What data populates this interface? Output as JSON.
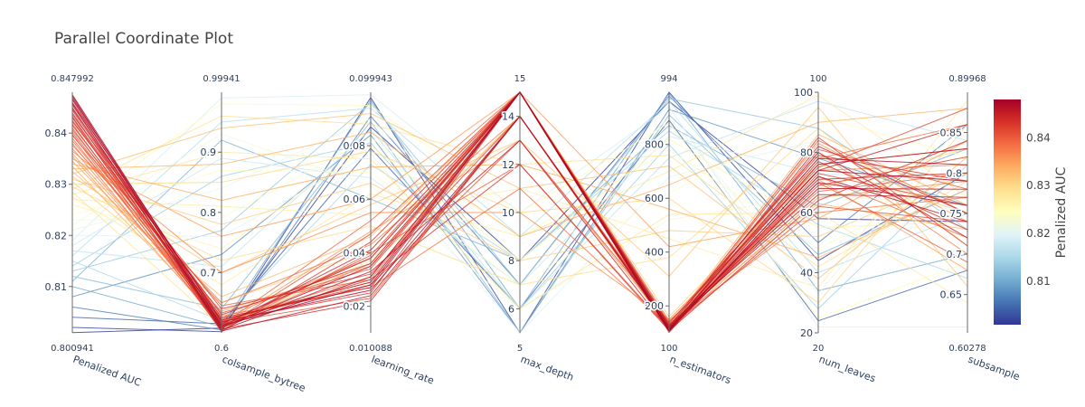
{
  "chart_data": {
    "type": "parallel_coordinates",
    "title": "Parallel Coordinate Plot",
    "color_by": "Penalized AUC",
    "colorscale": [
      "#313695",
      "#4575b4",
      "#74add1",
      "#abd9e9",
      "#e0f3f8",
      "#ffffbf",
      "#fee090",
      "#fdae61",
      "#f46d43",
      "#d73027",
      "#a50026"
    ],
    "colorbar": {
      "title": "Penalized AUC",
      "range": [
        0.800941,
        0.847992
      ],
      "ticks": [
        0.81,
        0.82,
        0.83,
        0.84
      ],
      "tick_labels": [
        "0.81",
        "0.82",
        "0.83",
        "0.84"
      ]
    },
    "axes": [
      {
        "name": "Penalized AUC",
        "min": 0.800941,
        "max": 0.847992,
        "min_label": "0.800941",
        "max_label": "0.847992",
        "ticks": [
          0.81,
          0.82,
          0.83,
          0.84
        ],
        "tick_labels": [
          "0.81",
          "0.82",
          "0.83",
          "0.84"
        ]
      },
      {
        "name": "colsample_bytree",
        "min": 0.6,
        "max": 0.99941,
        "min_label": "0.6",
        "max_label": "0.99941",
        "ticks": [
          0.7,
          0.8,
          0.9
        ],
        "tick_labels": [
          "0.7",
          "0.8",
          "0.9"
        ]
      },
      {
        "name": "learning_rate",
        "min": 0.010088,
        "max": 0.099943,
        "min_label": "0.010088",
        "max_label": "0.099943",
        "ticks": [
          0.02,
          0.04,
          0.06,
          0.08
        ],
        "tick_labels": [
          "0.02",
          "0.04",
          "0.06",
          "0.08"
        ]
      },
      {
        "name": "max_depth",
        "min": 5,
        "max": 15,
        "min_label": "5",
        "max_label": "15",
        "ticks": [
          6,
          8,
          10,
          12,
          14
        ],
        "tick_labels": [
          "6",
          "8",
          "10",
          "12",
          "14"
        ]
      },
      {
        "name": "n_estimators",
        "min": 100,
        "max": 994,
        "min_label": "100",
        "max_label": "994",
        "ticks": [
          200,
          400,
          600,
          800
        ],
        "tick_labels": [
          "200",
          "400",
          "600",
          "800"
        ]
      },
      {
        "name": "num_leaves",
        "min": 20,
        "max": 100,
        "min_label": "20",
        "max_label": "100",
        "ticks": [
          20,
          40,
          60,
          80,
          100
        ],
        "tick_labels": [
          "20",
          "40",
          "60",
          "80",
          "100"
        ]
      },
      {
        "name": "subsample",
        "min": 0.60278,
        "max": 0.89968,
        "min_label": "0.60278",
        "max_label": "0.89968",
        "ticks": [
          0.65,
          0.7,
          0.75,
          0.8,
          0.85
        ],
        "tick_labels": [
          "0.65",
          "0.7",
          "0.75",
          "0.8",
          "0.85"
        ]
      }
    ],
    "trials": [
      [
        0.8475,
        0.612,
        0.028,
        15,
        108,
        74,
        0.79
      ],
      [
        0.8472,
        0.605,
        0.031,
        15,
        112,
        70,
        0.76
      ],
      [
        0.8468,
        0.618,
        0.026,
        14,
        115,
        78,
        0.81
      ],
      [
        0.8465,
        0.609,
        0.035,
        15,
        120,
        72,
        0.74
      ],
      [
        0.846,
        0.621,
        0.029,
        15,
        105,
        76,
        0.83
      ],
      [
        0.8458,
        0.603,
        0.024,
        14,
        118,
        68,
        0.78
      ],
      [
        0.8455,
        0.615,
        0.038,
        15,
        125,
        80,
        0.72
      ],
      [
        0.845,
        0.608,
        0.033,
        13,
        110,
        74,
        0.86
      ],
      [
        0.8448,
        0.625,
        0.027,
        15,
        130,
        66,
        0.77
      ],
      [
        0.8445,
        0.611,
        0.041,
        15,
        104,
        82,
        0.75
      ],
      [
        0.844,
        0.606,
        0.022,
        14,
        122,
        71,
        0.8
      ],
      [
        0.8436,
        0.63,
        0.036,
        15,
        115,
        77,
        0.73
      ],
      [
        0.8432,
        0.614,
        0.03,
        12,
        108,
        64,
        0.84
      ],
      [
        0.843,
        0.602,
        0.044,
        15,
        135,
        79,
        0.79
      ],
      [
        0.8425,
        0.619,
        0.025,
        15,
        112,
        85,
        0.71
      ],
      [
        0.8422,
        0.64,
        0.032,
        14,
        126,
        69,
        0.82
      ],
      [
        0.8418,
        0.61,
        0.039,
        15,
        102,
        73,
        0.76
      ],
      [
        0.8415,
        0.622,
        0.028,
        13,
        140,
        75,
        0.88
      ],
      [
        0.841,
        0.607,
        0.047,
        15,
        118,
        62,
        0.74
      ],
      [
        0.8406,
        0.633,
        0.034,
        15,
        109,
        81,
        0.78
      ],
      [
        0.8402,
        0.616,
        0.023,
        14,
        128,
        70,
        0.69
      ],
      [
        0.8398,
        0.604,
        0.04,
        12,
        114,
        76,
        0.83
      ],
      [
        0.8395,
        0.645,
        0.03,
        15,
        106,
        84,
        0.75
      ],
      [
        0.839,
        0.613,
        0.052,
        15,
        145,
        67,
        0.8
      ],
      [
        0.8385,
        0.628,
        0.027,
        11,
        121,
        72,
        0.72
      ],
      [
        0.838,
        0.609,
        0.036,
        15,
        111,
        78,
        0.86
      ],
      [
        0.8376,
        0.65,
        0.043,
        14,
        133,
        60,
        0.77
      ],
      [
        0.837,
        0.618,
        0.031,
        15,
        103,
        80,
        0.7
      ],
      [
        0.8365,
        0.7,
        0.055,
        10,
        150,
        74,
        0.81
      ],
      [
        0.836,
        0.624,
        0.038,
        15,
        117,
        65,
        0.79
      ],
      [
        0.8355,
        0.612,
        0.048,
        13,
        127,
        83,
        0.74
      ],
      [
        0.835,
        0.76,
        0.06,
        15,
        420,
        58,
        0.84
      ],
      [
        0.8345,
        0.636,
        0.035,
        14,
        108,
        71,
        0.68
      ],
      [
        0.834,
        0.82,
        0.072,
        12,
        560,
        45,
        0.78
      ],
      [
        0.8335,
        0.62,
        0.029,
        15,
        124,
        86,
        0.76
      ],
      [
        0.833,
        0.88,
        0.085,
        9,
        650,
        90,
        0.88
      ],
      [
        0.8325,
        0.66,
        0.046,
        15,
        138,
        63,
        0.73
      ],
      [
        0.832,
        0.94,
        0.092,
        11,
        720,
        38,
        0.82
      ],
      [
        0.8315,
        0.7,
        0.058,
        13,
        310,
        95,
        0.66
      ],
      [
        0.831,
        0.78,
        0.066,
        8,
        480,
        52,
        0.8
      ],
      [
        0.8305,
        0.65,
        0.041,
        15,
        160,
        76,
        0.75
      ],
      [
        0.83,
        0.85,
        0.078,
        10,
        600,
        30,
        0.86
      ],
      [
        0.8295,
        0.72,
        0.05,
        7,
        380,
        88,
        0.71
      ],
      [
        0.829,
        0.96,
        0.088,
        12,
        760,
        42,
        0.79
      ],
      [
        0.8285,
        0.61,
        0.037,
        14,
        125,
        68,
        0.83
      ],
      [
        0.828,
        0.9,
        0.075,
        6,
        540,
        60,
        0.64
      ],
      [
        0.8275,
        0.68,
        0.062,
        9,
        700,
        99,
        0.77
      ],
      [
        0.827,
        0.81,
        0.054,
        11,
        450,
        35,
        0.89
      ],
      [
        0.826,
        0.74,
        0.08,
        8,
        820,
        55,
        0.74
      ],
      [
        0.825,
        0.98,
        0.095,
        10,
        880,
        25,
        0.69
      ],
      [
        0.824,
        0.87,
        0.07,
        7,
        620,
        92,
        0.82
      ],
      [
        0.823,
        0.79,
        0.083,
        9,
        780,
        48,
        0.8
      ],
      [
        0.822,
        0.93,
        0.065,
        6,
        520,
        66,
        0.76
      ],
      [
        0.821,
        0.84,
        0.09,
        8,
        900,
        33,
        0.87
      ],
      [
        0.82,
        0.76,
        0.077,
        5,
        680,
        84,
        0.72
      ],
      [
        0.819,
        0.99,
        0.099,
        10,
        940,
        22,
        0.61
      ],
      [
        0.818,
        0.89,
        0.068,
        7,
        830,
        73,
        0.79
      ],
      [
        0.817,
        0.71,
        0.086,
        6,
        750,
        97,
        0.84
      ],
      [
        0.816,
        0.95,
        0.094,
        9,
        960,
        40,
        0.75
      ],
      [
        0.815,
        0.62,
        0.073,
        8,
        850,
        56,
        0.67
      ],
      [
        0.814,
        0.86,
        0.081,
        6,
        800,
        28,
        0.81
      ],
      [
        0.813,
        0.77,
        0.096,
        7,
        970,
        88,
        0.73
      ],
      [
        0.812,
        0.64,
        0.089,
        5,
        910,
        46,
        0.78
      ],
      [
        0.811,
        0.92,
        0.06,
        8,
        870,
        62,
        0.83
      ],
      [
        0.81,
        0.61,
        0.097,
        6,
        990,
        34,
        0.7
      ],
      [
        0.808,
        0.73,
        0.084,
        5,
        930,
        78,
        0.76
      ],
      [
        0.806,
        0.605,
        0.091,
        7,
        980,
        50,
        0.86
      ],
      [
        0.804,
        0.615,
        0.079,
        6,
        890,
        24,
        0.68
      ],
      [
        0.802,
        0.602,
        0.098,
        5,
        994,
        44,
        0.8
      ],
      [
        0.801,
        0.608,
        0.087,
        8,
        960,
        58,
        0.74
      ]
    ]
  }
}
